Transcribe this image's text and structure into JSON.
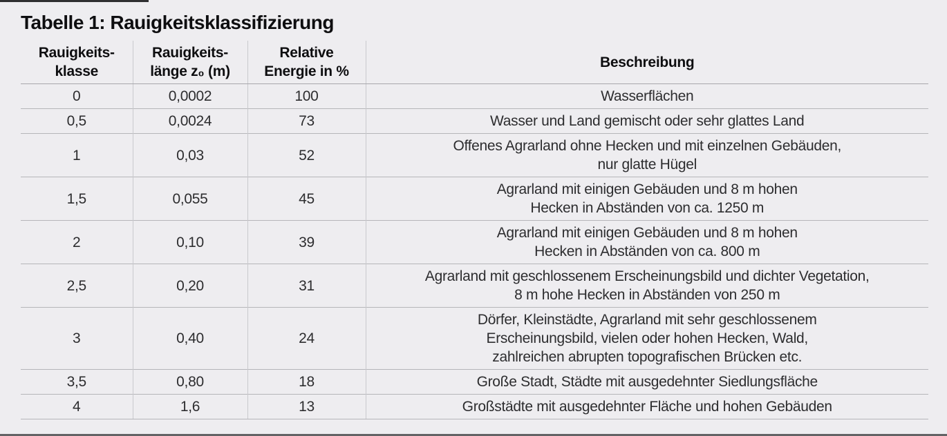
{
  "title": "Tabelle 1: Rauigkeitsklassifizierung",
  "table": {
    "headers": [
      "Rauigkeits-\nklasse",
      "Rauigkeits-\nlänge z₀ (m)",
      "Relative\nEnergie in %",
      "Beschreibung"
    ],
    "rows": [
      {
        "klasse": "0",
        "laenge": "0,0002",
        "energie": "100",
        "beschreibung": "Wasserflächen"
      },
      {
        "klasse": "0,5",
        "laenge": "0,0024",
        "energie": "73",
        "beschreibung": "Wasser und Land gemischt oder sehr glattes Land"
      },
      {
        "klasse": "1",
        "laenge": "0,03",
        "energie": "52",
        "beschreibung": "Offenes Agrarland ohne Hecken und mit einzelnen Gebäuden,\nnur glatte Hügel"
      },
      {
        "klasse": "1,5",
        "laenge": "0,055",
        "energie": "45",
        "beschreibung": "Agrarland mit einigen Gebäuden und 8 m hohen\nHecken in Abständen von ca. 1250 m"
      },
      {
        "klasse": "2",
        "laenge": "0,10",
        "energie": "39",
        "beschreibung": "Agrarland mit einigen Gebäuden und 8 m hohen\nHecken in Abständen von ca. 800 m"
      },
      {
        "klasse": "2,5",
        "laenge": "0,20",
        "energie": "31",
        "beschreibung": "Agrarland mit geschlossenem Erscheinungsbild und dichter Vegetation,\n8 m hohe Hecken in Abständen von 250 m"
      },
      {
        "klasse": "3",
        "laenge": "0,40",
        "energie": "24",
        "beschreibung": "Dörfer, Kleinstädte, Agrarland mit sehr geschlossenem\nErscheinungsbild, vielen oder hohen Hecken, Wald,\nzahlreichen abrupten topografischen Brücken etc."
      },
      {
        "klasse": "3,5",
        "laenge": "0,80",
        "energie": "18",
        "beschreibung": "Große Stadt, Städte mit ausgedehnter Siedlungsfläche"
      },
      {
        "klasse": "4",
        "laenge": "1,6",
        "energie": "13",
        "beschreibung": "Großstädte mit ausgedehnter Fläche und hohen Gebäuden"
      }
    ]
  },
  "colors": {
    "page_background": "#eeedf0",
    "body_text": "#2d2d2f",
    "heading_text": "#0e0e10",
    "row_line": "#b5b5b9",
    "column_line": "#c9c9cd",
    "header_underline": "#a7a7ab",
    "top_edge_bar": "#2f2f31",
    "bottom_edge_bar": "#626264"
  }
}
